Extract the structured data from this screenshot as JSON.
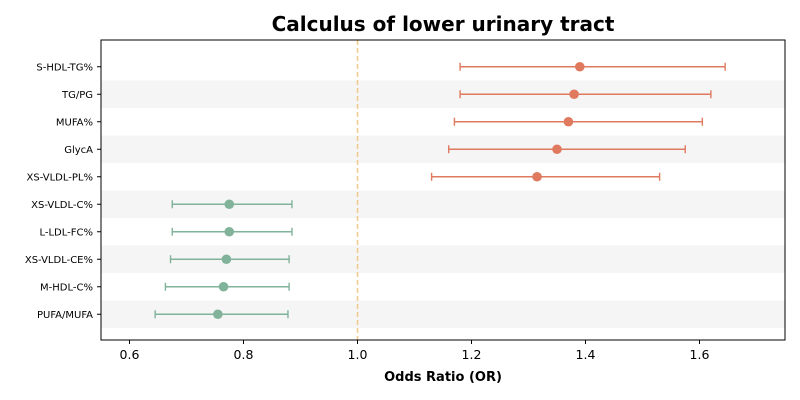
{
  "chart_data": {
    "type": "forest",
    "title": "Calculus of lower urinary tract",
    "xlabel": "Odds Ratio (OR)",
    "ylabel": "",
    "xlim": [
      0.55,
      1.75
    ],
    "xticks": [
      0.6,
      0.8,
      1.0,
      1.2,
      1.4,
      1.6
    ],
    "xtick_labels": [
      "0.6",
      "0.8",
      "1.0",
      "1.2",
      "1.4",
      "1.6"
    ],
    "reference_line": 1.0,
    "grid": false,
    "banded_rows": true,
    "colors": {
      "risk": "#e07a5f",
      "protective": "#81b29a",
      "reference": "#f2cc8f",
      "band": "#f5f5f5"
    },
    "rows": [
      {
        "label": "S-HDL-TG%",
        "or": 1.39,
        "low": 1.18,
        "high": 1.645,
        "group": "risk"
      },
      {
        "label": "TG/PG",
        "or": 1.38,
        "low": 1.18,
        "high": 1.62,
        "group": "risk"
      },
      {
        "label": "MUFA%",
        "or": 1.37,
        "low": 1.17,
        "high": 1.605,
        "group": "risk"
      },
      {
        "label": "GlycA",
        "or": 1.35,
        "low": 1.16,
        "high": 1.575,
        "group": "risk"
      },
      {
        "label": "XS-VLDL-PL%",
        "or": 1.315,
        "low": 1.13,
        "high": 1.53,
        "group": "risk"
      },
      {
        "label": "XS-VLDL-C%",
        "or": 0.775,
        "low": 0.675,
        "high": 0.885,
        "group": "protective"
      },
      {
        "label": "L-LDL-FC%",
        "or": 0.775,
        "low": 0.675,
        "high": 0.885,
        "group": "protective"
      },
      {
        "label": "XS-VLDL-CE%",
        "or": 0.77,
        "low": 0.672,
        "high": 0.88,
        "group": "protective"
      },
      {
        "label": "M-HDL-C%",
        "or": 0.765,
        "low": 0.663,
        "high": 0.88,
        "group": "protective"
      },
      {
        "label": "PUFA/MUFA",
        "or": 0.755,
        "low": 0.645,
        "high": 0.878,
        "group": "protective"
      }
    ]
  }
}
